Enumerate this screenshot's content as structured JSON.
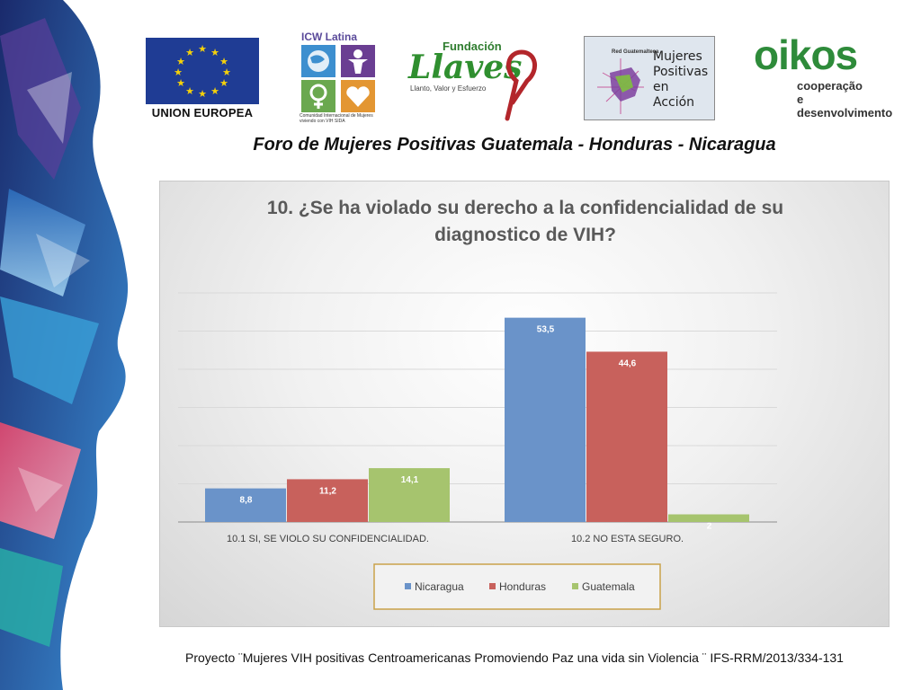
{
  "logos": {
    "eu": {
      "label": "UNION EUROPEA",
      "color": "#1f3c94"
    },
    "icw": {
      "title": "ICW Latina",
      "caption": "Comunidad Internacional de Mujeres viviendo con VIH SIDA"
    },
    "llaves": {
      "org": "Fundación",
      "name": "Llaves",
      "tagline": "Llanto, Valor y Esfuerzo"
    },
    "mujeres": {
      "red": "Red Guatemalteca",
      "name": "Mujeres Positivas en Acción"
    },
    "oikos": {
      "name": "oikos",
      "line1": "cooperação",
      "line2": "e desenvolvimento",
      "color": "#2e8b3a"
    }
  },
  "forum_title": "Foro de Mujeres Positivas Guatemala - Honduras - Nicaragua",
  "footer": "Proyecto ¨Mujeres VIH positivas Centroamericanas Promoviendo Paz una vida sin Violencia ¨ IFS-RRM/2013/334-131",
  "chart_data": {
    "type": "bar",
    "title_lines": [
      "10. ¿Se ha violado su derecho a la confidencialidad de su",
      "diagnostico de VIH?"
    ],
    "categories": [
      "10.1   SI, SE VIOLO SU CONFIDENCIALIDAD.",
      "10.2   NO ESTA SEGURO."
    ],
    "series": [
      {
        "name": "Nicaragua",
        "values": [
          8.8,
          53.5
        ],
        "labels": [
          "8,8",
          "53,5"
        ],
        "color": "#6a93c9"
      },
      {
        "name": "Honduras",
        "values": [
          11.2,
          44.6
        ],
        "labels": [
          "11,2",
          "44,6"
        ],
        "color": "#c8615c"
      },
      {
        "name": "Guatemala",
        "values": [
          14.1,
          2
        ],
        "labels": [
          "14,1",
          "2"
        ],
        "color": "#a6c46e"
      }
    ],
    "ylim": [
      0,
      60
    ],
    "grid": true,
    "legend": "bottom"
  }
}
